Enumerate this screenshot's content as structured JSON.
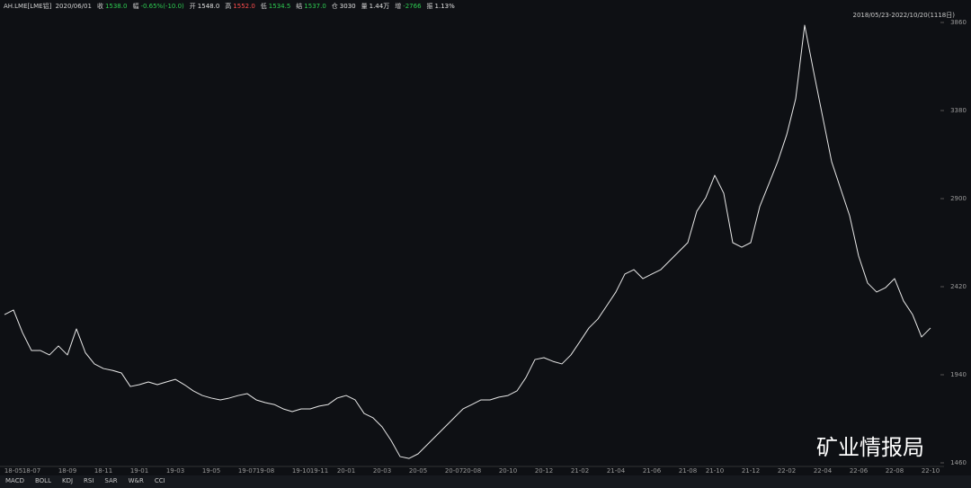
{
  "header": {
    "symbol": "AH.LME[LME铝]",
    "date": "2020/06/01",
    "items": [
      {
        "label": "收",
        "value": "1538.0",
        "color": "#2ecc52"
      },
      {
        "label": "幅",
        "value": "-0.65%(-10.0)",
        "color": "#2ecc52"
      },
      {
        "label": "开",
        "value": "1548.0",
        "color": "#e0e0e0"
      },
      {
        "label": "高",
        "value": "1552.0",
        "color": "#ff4d4d"
      },
      {
        "label": "低",
        "value": "1534.5",
        "color": "#2ecc52"
      },
      {
        "label": "结",
        "value": "1537.0",
        "color": "#2ecc52"
      },
      {
        "label": "仓",
        "value": "3030",
        "color": "#e0e0e0"
      },
      {
        "label": "量",
        "value": "1.44万",
        "color": "#e0e0e0"
      },
      {
        "label": "增",
        "value": "-2766",
        "color": "#2ecc52"
      },
      {
        "label": "振",
        "value": "1.13%",
        "color": "#e0e0e0"
      }
    ],
    "range": "2018/05/23-2022/10/20(1118日)"
  },
  "tabs": [
    "MACD",
    "BOLL",
    "KDJ",
    "RSI",
    "SAR",
    "W&R",
    "CCI"
  ],
  "watermark": "矿业情报局",
  "chart_data": {
    "type": "line",
    "color": "#e8e8e8",
    "categories": [
      null,
      "18-05",
      null,
      "18-07",
      null,
      null,
      null,
      "18-09",
      null,
      null,
      null,
      "18-11",
      null,
      null,
      null,
      "19-01",
      null,
      null,
      null,
      "19-03",
      null,
      null,
      null,
      "19-05",
      null,
      null,
      null,
      "19-07",
      null,
      "19-08",
      null,
      null,
      null,
      "19-10",
      null,
      "19-11",
      null,
      null,
      "20-01",
      null,
      null,
      null,
      "20-03",
      null,
      null,
      null,
      "20-05",
      null,
      null,
      null,
      "20-07",
      null,
      "20-08",
      null,
      null,
      null,
      "20-10",
      null,
      null,
      null,
      "20-12",
      null,
      null,
      null,
      "21-02",
      null,
      null,
      null,
      "21-04",
      null,
      null,
      null,
      "21-06",
      null,
      null,
      null,
      "21-08",
      null,
      null,
      "21-10",
      null,
      null,
      null,
      "21-12",
      null,
      null,
      null,
      "22-02",
      null,
      null,
      null,
      "22-04",
      null,
      null,
      null,
      "22-06",
      null,
      null,
      null,
      "22-08",
      null,
      null,
      null,
      "22-10"
    ],
    "values": [
      2268,
      2293,
      2170,
      2072,
      2072,
      2048,
      2097,
      2048,
      2190,
      2060,
      1999,
      1974,
      1964,
      1950,
      1876,
      1886,
      1901,
      1886,
      1901,
      1915,
      1886,
      1852,
      1827,
      1813,
      1803,
      1813,
      1827,
      1837,
      1803,
      1788,
      1778,
      1754,
      1739,
      1754,
      1754,
      1769,
      1778,
      1813,
      1827,
      1803,
      1729,
      1705,
      1656,
      1582,
      1494,
      1484,
      1509,
      1558,
      1607,
      1656,
      1705,
      1754,
      1778,
      1803,
      1803,
      1818,
      1827,
      1852,
      1925,
      2023,
      2033,
      2013,
      1999,
      2048,
      2121,
      2195,
      2244,
      2317,
      2391,
      2489,
      2513,
      2464,
      2489,
      2513,
      2562,
      2611,
      2660,
      2831,
      2905,
      3027,
      2929,
      2660,
      2635,
      2660,
      2856,
      2978,
      3101,
      3248,
      3444,
      3845,
      3591,
      3346,
      3101,
      2954,
      2807,
      2587,
      2440,
      2391,
      2415,
      2464,
      2342,
      2268,
      2146,
      2195
    ],
    "ylim": [
      1460,
      3860
    ],
    "yticks": [
      1460,
      1940,
      2420,
      2900,
      3380,
      3860
    ]
  }
}
